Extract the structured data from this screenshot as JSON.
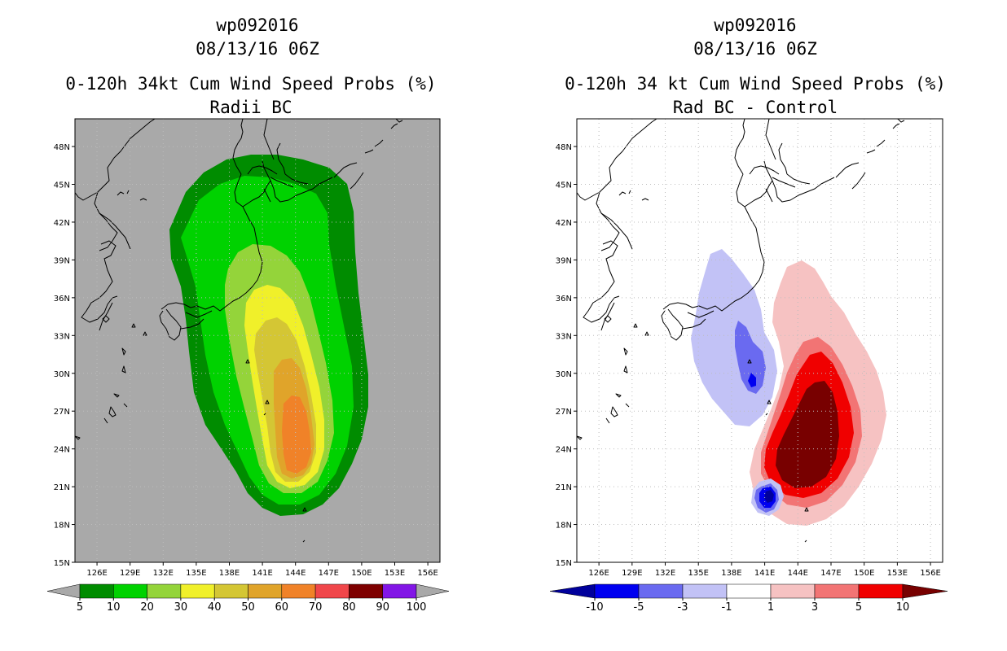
{
  "panels": [
    {
      "line1": "wp092016",
      "line2": "08/13/16 06Z",
      "line3": "0-120h 34kt Cum Wind Speed Probs (%)",
      "line4": "Radii BC",
      "background": "#a9a9a9",
      "colorbar": {
        "labels": [
          "5",
          "10",
          "20",
          "30",
          "40",
          "50",
          "60",
          "70",
          "80",
          "90",
          "100"
        ],
        "colors": [
          "#008c00",
          "#00d200",
          "#94d43a",
          "#f0f02a",
          "#d4c634",
          "#e0a42a",
          "#f08228",
          "#f0464a",
          "#7e0000",
          "#8216e6"
        ],
        "low_arrow": "#a9a9a9",
        "high_arrow": "#a9a9a9"
      }
    },
    {
      "line1": "wp092016",
      "line2": "08/13/16 06Z",
      "line3": "0-120h 34 kt Cum Wind Speed Probs (%)",
      "line4": "Rad BC - Control",
      "background": "#ffffff",
      "colorbar": {
        "labels": [
          "-10",
          "-5",
          "-3",
          "-1",
          "1",
          "3",
          "5",
          "10"
        ],
        "colors": [
          "#0000f0",
          "#6a6af0",
          "#c2c2f6",
          "#ffffff",
          "#f6c2c2",
          "#f27474",
          "#f00000"
        ],
        "low_arrow": "#00009c",
        "high_arrow": "#780000"
      }
    }
  ],
  "axes": {
    "lon_labels": [
      "126E",
      "129E",
      "132E",
      "135E",
      "138E",
      "141E",
      "144E",
      "147E",
      "150E",
      "153E",
      "156E"
    ],
    "lat_labels": [
      "15N",
      "18N",
      "21N",
      "24N",
      "27N",
      "30N",
      "33N",
      "36N",
      "39N",
      "42N",
      "45N",
      "48N"
    ]
  }
}
